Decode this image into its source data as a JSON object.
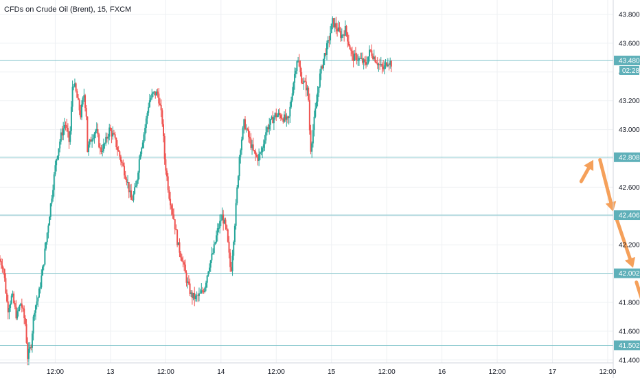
{
  "title": "CFDs on Crude Oil (Brent), 15, FXCM",
  "chart_data": {
    "type": "candlestick",
    "title": "CFDs on Crude Oil (Brent), 15, FXCM",
    "ylim": [
      41.38,
      43.9
    ],
    "y_ticks": [
      41.4,
      41.6,
      41.8,
      42.0,
      42.2,
      42.4,
      42.6,
      42.8,
      43.0,
      43.2,
      43.4,
      43.6,
      43.8
    ],
    "y_tick_labels": [
      "41.400",
      "41.600",
      "41.800",
      "42.000",
      "42.200",
      "42.400",
      "42.600",
      "42.800",
      "43.000",
      "43.200",
      "43.400",
      "43.600",
      "43.800"
    ],
    "x_ticks": [
      "12:00",
      "13",
      "12:00",
      "14",
      "12:00",
      "15",
      "12:00",
      "16",
      "12:00",
      "17",
      "12:00"
    ],
    "x_range_days": [
      12.0,
      17.55
    ],
    "x_tick_days": [
      12.5,
      13.0,
      13.5,
      14.0,
      14.5,
      15.0,
      15.5,
      16.0,
      16.5,
      17.0,
      17.5
    ],
    "grid": true,
    "horizontal_levels": [
      {
        "value": 43.48,
        "label": "43.480"
      },
      {
        "value": 42.808,
        "label": "42.808"
      },
      {
        "value": 42.406,
        "label": "42.406"
      },
      {
        "value": 42.002,
        "label": "42.002"
      },
      {
        "value": 41.502,
        "label": "41.502"
      }
    ],
    "last_price_label": "43.480",
    "countdown_label": "02:28",
    "price_path": [
      [
        12.0,
        42.1
      ],
      [
        12.04,
        42.05
      ],
      [
        12.08,
        41.75
      ],
      [
        12.12,
        41.85
      ],
      [
        12.16,
        41.7
      ],
      [
        12.2,
        41.8
      ],
      [
        12.24,
        41.65
      ],
      [
        12.26,
        41.42
      ],
      [
        12.29,
        41.5
      ],
      [
        12.32,
        41.75
      ],
      [
        12.36,
        41.85
      ],
      [
        12.4,
        42.05
      ],
      [
        12.44,
        42.3
      ],
      [
        12.48,
        42.55
      ],
      [
        12.52,
        42.8
      ],
      [
        12.56,
        42.95
      ],
      [
        12.6,
        43.05
      ],
      [
        12.64,
        42.9
      ],
      [
        12.67,
        43.35
      ],
      [
        12.7,
        43.25
      ],
      [
        12.74,
        43.1
      ],
      [
        12.77,
        43.25
      ],
      [
        12.8,
        43.05
      ],
      [
        12.8,
        42.85
      ],
      [
        12.84,
        42.95
      ],
      [
        12.88,
        43.0
      ],
      [
        12.92,
        42.85
      ],
      [
        12.96,
        42.9
      ],
      [
        13.0,
        43.0
      ],
      [
        13.04,
        42.95
      ],
      [
        13.08,
        42.85
      ],
      [
        13.12,
        42.75
      ],
      [
        13.16,
        42.65
      ],
      [
        13.2,
        42.5
      ],
      [
        13.24,
        42.6
      ],
      [
        13.28,
        42.85
      ],
      [
        13.32,
        43.0
      ],
      [
        13.36,
        43.2
      ],
      [
        13.4,
        43.25
      ],
      [
        13.44,
        43.25
      ],
      [
        13.48,
        43.05
      ],
      [
        13.5,
        42.8
      ],
      [
        13.54,
        42.55
      ],
      [
        13.58,
        42.4
      ],
      [
        13.62,
        42.2
      ],
      [
        13.66,
        42.1
      ],
      [
        13.7,
        41.95
      ],
      [
        13.74,
        41.85
      ],
      [
        13.78,
        41.83
      ],
      [
        13.82,
        41.85
      ],
      [
        13.86,
        41.9
      ],
      [
        13.9,
        42.05
      ],
      [
        13.94,
        42.15
      ],
      [
        13.98,
        42.3
      ],
      [
        14.02,
        42.4
      ],
      [
        14.06,
        42.3
      ],
      [
        14.1,
        42.0
      ],
      [
        14.14,
        42.4
      ],
      [
        14.18,
        42.85
      ],
      [
        14.22,
        43.05
      ],
      [
        14.26,
        42.95
      ],
      [
        14.3,
        42.85
      ],
      [
        14.34,
        42.8
      ],
      [
        14.38,
        42.85
      ],
      [
        14.42,
        43.0
      ],
      [
        14.46,
        43.05
      ],
      [
        14.5,
        43.1
      ],
      [
        14.54,
        43.1
      ],
      [
        14.58,
        43.08
      ],
      [
        14.62,
        43.05
      ],
      [
        14.66,
        43.3
      ],
      [
        14.7,
        43.5
      ],
      [
        14.74,
        43.35
      ],
      [
        14.78,
        43.3
      ],
      [
        14.8,
        43.25
      ],
      [
        14.82,
        42.85
      ],
      [
        14.86,
        43.1
      ],
      [
        14.9,
        43.35
      ],
      [
        14.94,
        43.5
      ],
      [
        14.98,
        43.6
      ],
      [
        15.02,
        43.75
      ],
      [
        15.06,
        43.7
      ],
      [
        15.1,
        43.65
      ],
      [
        15.14,
        43.7
      ],
      [
        15.16,
        43.62
      ],
      [
        15.2,
        43.5
      ],
      [
        15.24,
        43.5
      ],
      [
        15.28,
        43.48
      ],
      [
        15.32,
        43.45
      ],
      [
        15.36,
        43.55
      ],
      [
        15.4,
        43.5
      ],
      [
        15.44,
        43.45
      ],
      [
        15.48,
        43.42
      ],
      [
        15.52,
        43.48
      ],
      [
        15.55,
        43.46
      ]
    ],
    "projection_arrows": [
      {
        "from": [
          17.26,
          42.64
        ],
        "to": [
          17.37,
          42.79
        ]
      },
      {
        "from": [
          17.43,
          42.79
        ],
        "to": [
          17.55,
          42.43
        ]
      },
      {
        "from": [
          17.58,
          42.38
        ],
        "to": [
          17.73,
          42.04
        ]
      },
      {
        "from": [
          17.76,
          41.94
        ],
        "to": [
          17.93,
          41.53
        ]
      }
    ],
    "colors": {
      "up": "#26a69a",
      "down": "#ef5350",
      "level_line": "#7cc2c9",
      "level_label_bg": "#5fb0b9",
      "arrow": "#f5a05a",
      "grid": "#eef0f3",
      "axis_text": "#131722"
    }
  }
}
